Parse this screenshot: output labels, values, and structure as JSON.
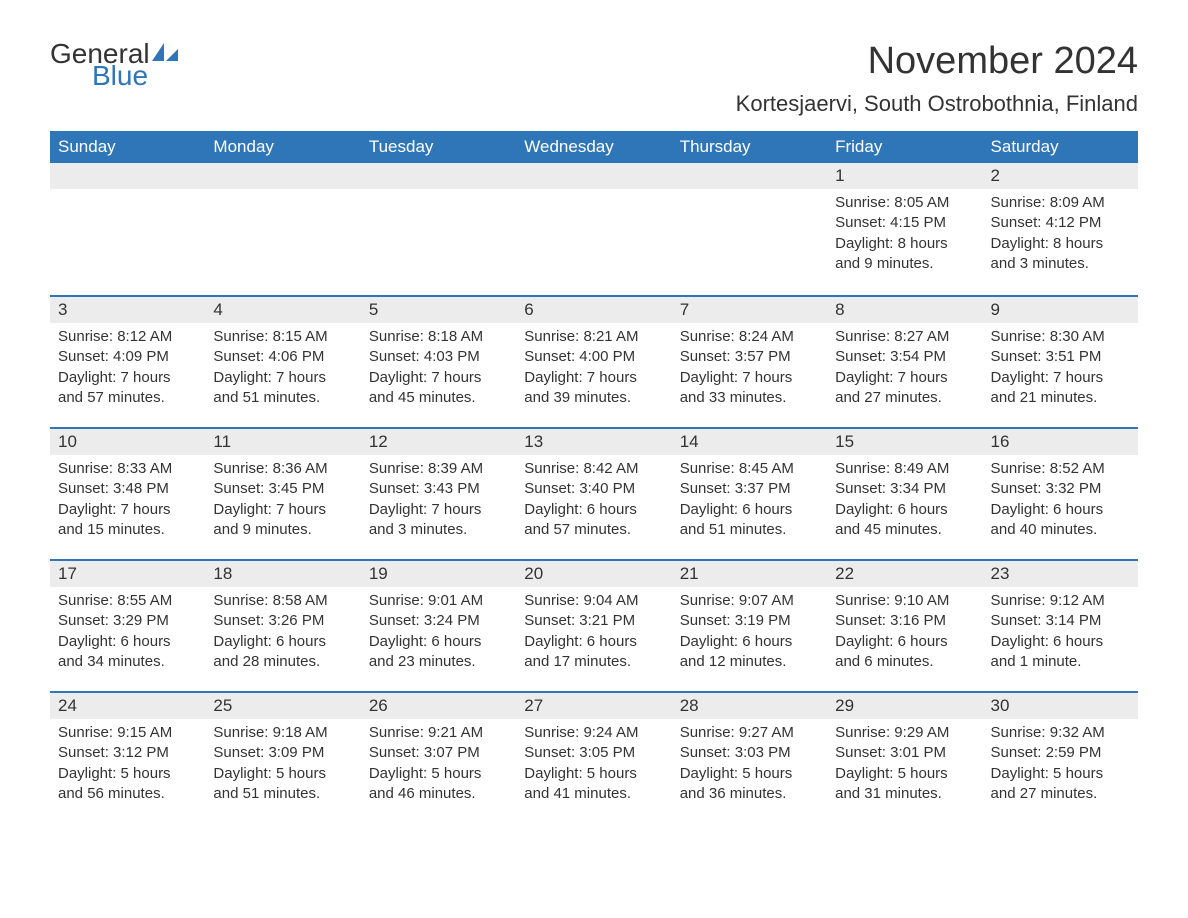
{
  "logo": {
    "text1": "General",
    "text2": "Blue",
    "accent": "#2f76b8"
  },
  "title": "November 2024",
  "location": "Kortesjaervi, South Ostrobothnia, Finland",
  "colors": {
    "header_bg": "#2f76b8",
    "header_text": "#ffffff",
    "daynum_bg": "#ececec",
    "text": "#333333",
    "rule": "#2f76b8",
    "page_bg": "#ffffff"
  },
  "typography": {
    "title_fontsize": 38,
    "location_fontsize": 22,
    "dayheader_fontsize": 17,
    "daynum_fontsize": 17,
    "body_fontsize": 15
  },
  "day_labels": [
    "Sunday",
    "Monday",
    "Tuesday",
    "Wednesday",
    "Thursday",
    "Friday",
    "Saturday"
  ],
  "weeks": [
    [
      {
        "n": "",
        "sunrise": "",
        "sunset": "",
        "daylight": ""
      },
      {
        "n": "",
        "sunrise": "",
        "sunset": "",
        "daylight": ""
      },
      {
        "n": "",
        "sunrise": "",
        "sunset": "",
        "daylight": ""
      },
      {
        "n": "",
        "sunrise": "",
        "sunset": "",
        "daylight": ""
      },
      {
        "n": "",
        "sunrise": "",
        "sunset": "",
        "daylight": ""
      },
      {
        "n": "1",
        "sunrise": "Sunrise: 8:05 AM",
        "sunset": "Sunset: 4:15 PM",
        "daylight": "Daylight: 8 hours and 9 minutes."
      },
      {
        "n": "2",
        "sunrise": "Sunrise: 8:09 AM",
        "sunset": "Sunset: 4:12 PM",
        "daylight": "Daylight: 8 hours and 3 minutes."
      }
    ],
    [
      {
        "n": "3",
        "sunrise": "Sunrise: 8:12 AM",
        "sunset": "Sunset: 4:09 PM",
        "daylight": "Daylight: 7 hours and 57 minutes."
      },
      {
        "n": "4",
        "sunrise": "Sunrise: 8:15 AM",
        "sunset": "Sunset: 4:06 PM",
        "daylight": "Daylight: 7 hours and 51 minutes."
      },
      {
        "n": "5",
        "sunrise": "Sunrise: 8:18 AM",
        "sunset": "Sunset: 4:03 PM",
        "daylight": "Daylight: 7 hours and 45 minutes."
      },
      {
        "n": "6",
        "sunrise": "Sunrise: 8:21 AM",
        "sunset": "Sunset: 4:00 PM",
        "daylight": "Daylight: 7 hours and 39 minutes."
      },
      {
        "n": "7",
        "sunrise": "Sunrise: 8:24 AM",
        "sunset": "Sunset: 3:57 PM",
        "daylight": "Daylight: 7 hours and 33 minutes."
      },
      {
        "n": "8",
        "sunrise": "Sunrise: 8:27 AM",
        "sunset": "Sunset: 3:54 PM",
        "daylight": "Daylight: 7 hours and 27 minutes."
      },
      {
        "n": "9",
        "sunrise": "Sunrise: 8:30 AM",
        "sunset": "Sunset: 3:51 PM",
        "daylight": "Daylight: 7 hours and 21 minutes."
      }
    ],
    [
      {
        "n": "10",
        "sunrise": "Sunrise: 8:33 AM",
        "sunset": "Sunset: 3:48 PM",
        "daylight": "Daylight: 7 hours and 15 minutes."
      },
      {
        "n": "11",
        "sunrise": "Sunrise: 8:36 AM",
        "sunset": "Sunset: 3:45 PM",
        "daylight": "Daylight: 7 hours and 9 minutes."
      },
      {
        "n": "12",
        "sunrise": "Sunrise: 8:39 AM",
        "sunset": "Sunset: 3:43 PM",
        "daylight": "Daylight: 7 hours and 3 minutes."
      },
      {
        "n": "13",
        "sunrise": "Sunrise: 8:42 AM",
        "sunset": "Sunset: 3:40 PM",
        "daylight": "Daylight: 6 hours and 57 minutes."
      },
      {
        "n": "14",
        "sunrise": "Sunrise: 8:45 AM",
        "sunset": "Sunset: 3:37 PM",
        "daylight": "Daylight: 6 hours and 51 minutes."
      },
      {
        "n": "15",
        "sunrise": "Sunrise: 8:49 AM",
        "sunset": "Sunset: 3:34 PM",
        "daylight": "Daylight: 6 hours and 45 minutes."
      },
      {
        "n": "16",
        "sunrise": "Sunrise: 8:52 AM",
        "sunset": "Sunset: 3:32 PM",
        "daylight": "Daylight: 6 hours and 40 minutes."
      }
    ],
    [
      {
        "n": "17",
        "sunrise": "Sunrise: 8:55 AM",
        "sunset": "Sunset: 3:29 PM",
        "daylight": "Daylight: 6 hours and 34 minutes."
      },
      {
        "n": "18",
        "sunrise": "Sunrise: 8:58 AM",
        "sunset": "Sunset: 3:26 PM",
        "daylight": "Daylight: 6 hours and 28 minutes."
      },
      {
        "n": "19",
        "sunrise": "Sunrise: 9:01 AM",
        "sunset": "Sunset: 3:24 PM",
        "daylight": "Daylight: 6 hours and 23 minutes."
      },
      {
        "n": "20",
        "sunrise": "Sunrise: 9:04 AM",
        "sunset": "Sunset: 3:21 PM",
        "daylight": "Daylight: 6 hours and 17 minutes."
      },
      {
        "n": "21",
        "sunrise": "Sunrise: 9:07 AM",
        "sunset": "Sunset: 3:19 PM",
        "daylight": "Daylight: 6 hours and 12 minutes."
      },
      {
        "n": "22",
        "sunrise": "Sunrise: 9:10 AM",
        "sunset": "Sunset: 3:16 PM",
        "daylight": "Daylight: 6 hours and 6 minutes."
      },
      {
        "n": "23",
        "sunrise": "Sunrise: 9:12 AM",
        "sunset": "Sunset: 3:14 PM",
        "daylight": "Daylight: 6 hours and 1 minute."
      }
    ],
    [
      {
        "n": "24",
        "sunrise": "Sunrise: 9:15 AM",
        "sunset": "Sunset: 3:12 PM",
        "daylight": "Daylight: 5 hours and 56 minutes."
      },
      {
        "n": "25",
        "sunrise": "Sunrise: 9:18 AM",
        "sunset": "Sunset: 3:09 PM",
        "daylight": "Daylight: 5 hours and 51 minutes."
      },
      {
        "n": "26",
        "sunrise": "Sunrise: 9:21 AM",
        "sunset": "Sunset: 3:07 PM",
        "daylight": "Daylight: 5 hours and 46 minutes."
      },
      {
        "n": "27",
        "sunrise": "Sunrise: 9:24 AM",
        "sunset": "Sunset: 3:05 PM",
        "daylight": "Daylight: 5 hours and 41 minutes."
      },
      {
        "n": "28",
        "sunrise": "Sunrise: 9:27 AM",
        "sunset": "Sunset: 3:03 PM",
        "daylight": "Daylight: 5 hours and 36 minutes."
      },
      {
        "n": "29",
        "sunrise": "Sunrise: 9:29 AM",
        "sunset": "Sunset: 3:01 PM",
        "daylight": "Daylight: 5 hours and 31 minutes."
      },
      {
        "n": "30",
        "sunrise": "Sunrise: 9:32 AM",
        "sunset": "Sunset: 2:59 PM",
        "daylight": "Daylight: 5 hours and 27 minutes."
      }
    ]
  ]
}
